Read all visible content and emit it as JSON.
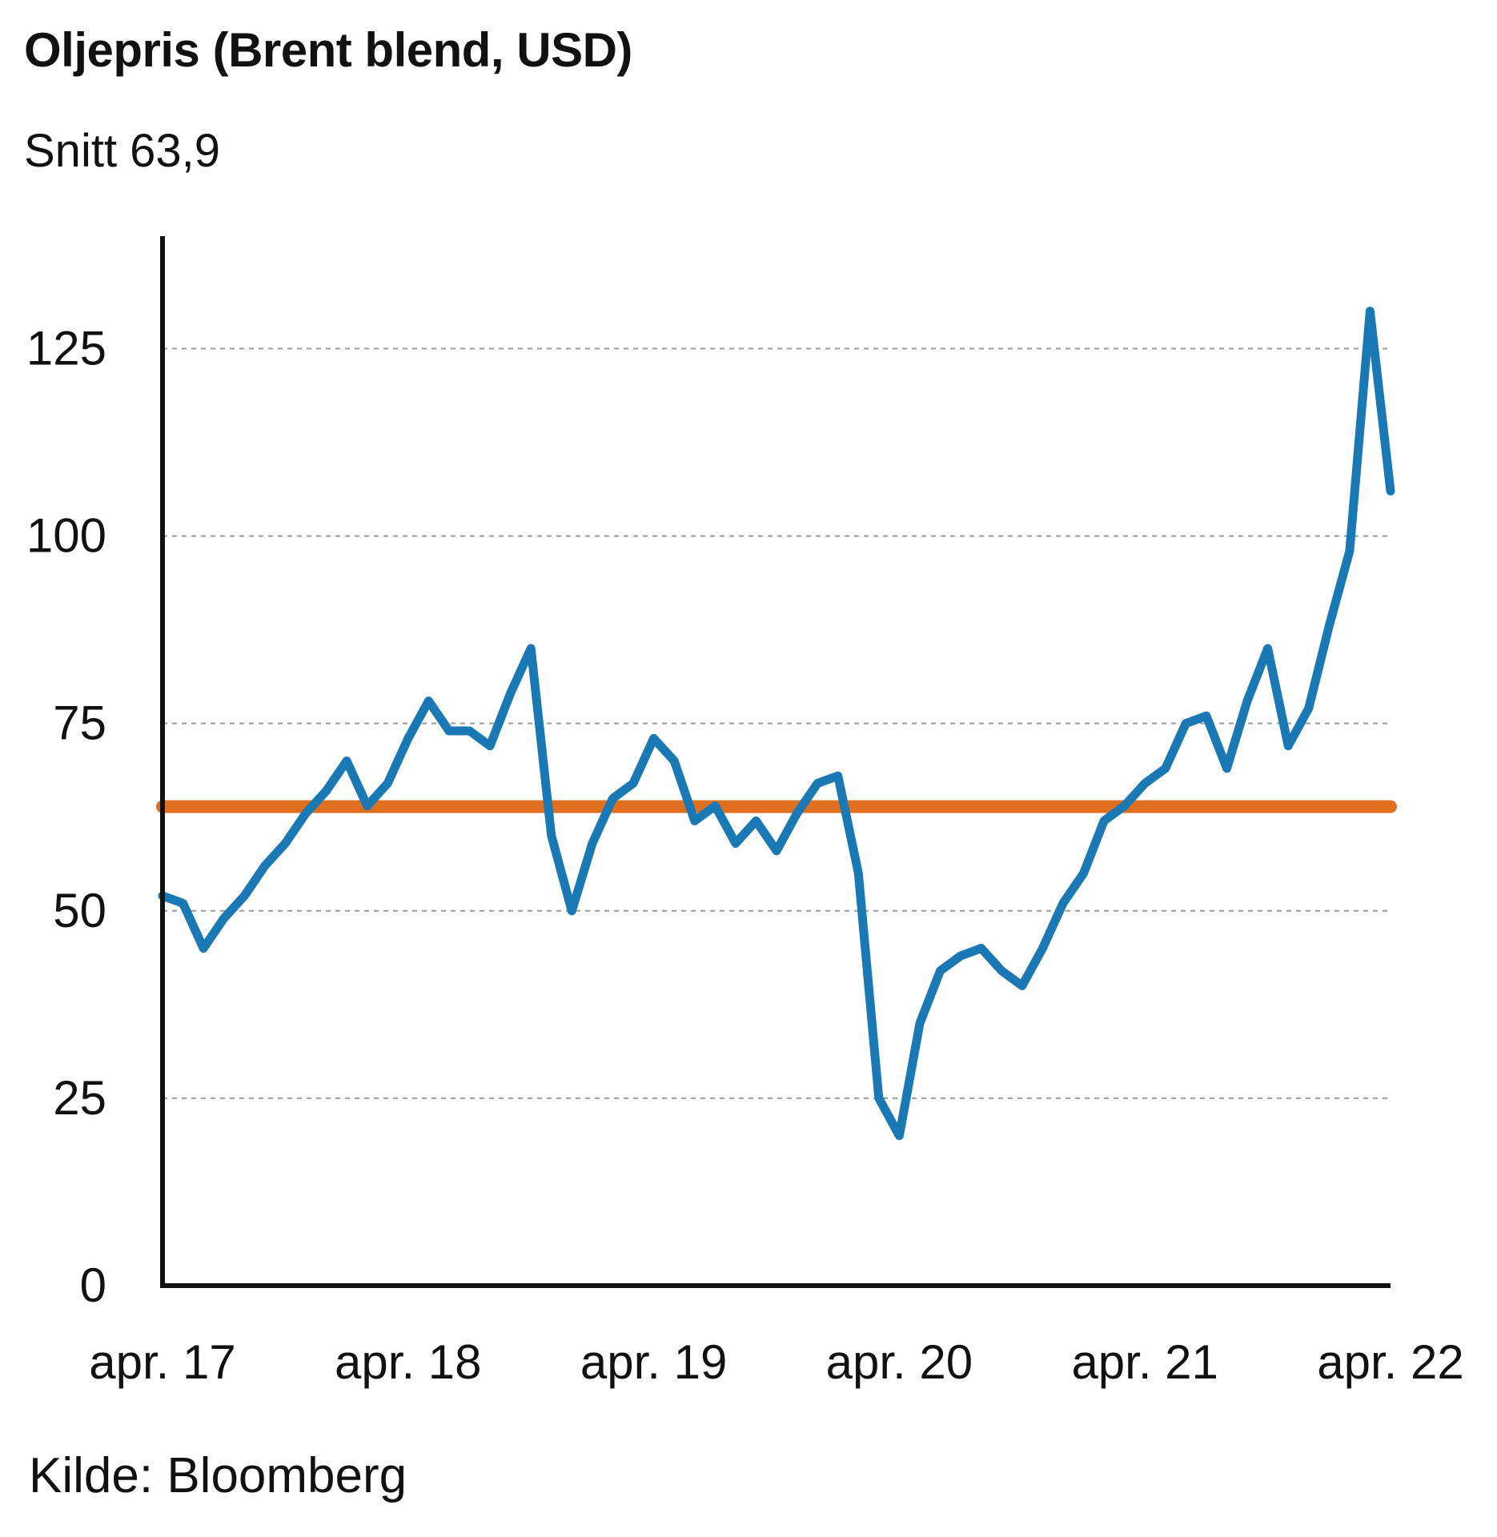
{
  "header": {
    "title": "Oljepris (Brent blend, USD)",
    "subtitle": "Snitt 63,9"
  },
  "footer": {
    "source": "Kilde: Bloomberg"
  },
  "colors": {
    "series": "#1a78b4",
    "average": "#e07020",
    "grid": "#9a9a9a",
    "axis": "#111111"
  },
  "chart_data": {
    "type": "line",
    "title": "Oljepris (Brent blend, USD)",
    "subtitle": "Snitt 63,9",
    "xlabel": "",
    "ylabel": "",
    "x_ticks": [
      "apr. 17",
      "apr. 18",
      "apr. 19",
      "apr. 20",
      "apr. 21",
      "apr. 22"
    ],
    "ylim": [
      0,
      140
    ],
    "y_ticks": [
      0,
      25,
      50,
      75,
      100,
      125
    ],
    "grid": "horizontal dashed",
    "average_value": 63.9,
    "series": [
      {
        "x": [
          "2017-04",
          "2017-05",
          "2017-06",
          "2017-07",
          "2017-08",
          "2017-09",
          "2017-10",
          "2017-11",
          "2017-12",
          "2018-01",
          "2018-02",
          "2018-03",
          "2018-04",
          "2018-05",
          "2018-06",
          "2018-07",
          "2018-08",
          "2018-09",
          "2018-10",
          "2018-11",
          "2018-12",
          "2019-01",
          "2019-02",
          "2019-03",
          "2019-04",
          "2019-05",
          "2019-06",
          "2019-07",
          "2019-08",
          "2019-09",
          "2019-10",
          "2019-11",
          "2019-12",
          "2020-01",
          "2020-02",
          "2020-03",
          "2020-04",
          "2020-05",
          "2020-06",
          "2020-07",
          "2020-08",
          "2020-09",
          "2020-10",
          "2020-11",
          "2020-12",
          "2021-01",
          "2021-02",
          "2021-03",
          "2021-04",
          "2021-05",
          "2021-06",
          "2021-07",
          "2021-08",
          "2021-09",
          "2021-10",
          "2021-11",
          "2021-12",
          "2022-01",
          "2022-02",
          "2022-03",
          "2022-04"
        ],
        "values": [
          52,
          51,
          45,
          49,
          52,
          56,
          59,
          63,
          66,
          70,
          64,
          67,
          73,
          78,
          74,
          74,
          72,
          79,
          85,
          60,
          50,
          59,
          65,
          67,
          73,
          70,
          62,
          64,
          59,
          62,
          58,
          63,
          67,
          68,
          55,
          25,
          20,
          35,
          42,
          44,
          45,
          42,
          40,
          45,
          51,
          55,
          62,
          64,
          67,
          69,
          75,
          76,
          69,
          78,
          85,
          72,
          77,
          88,
          98,
          130,
          106
        ]
      }
    ]
  }
}
